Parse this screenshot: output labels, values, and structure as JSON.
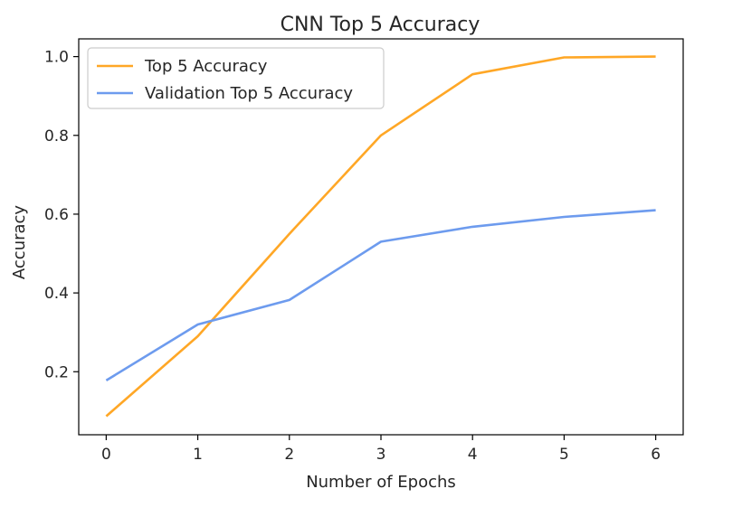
{
  "chart_data": {
    "type": "line",
    "title": "CNN Top 5 Accuracy",
    "xlabel": "Number of Epochs",
    "ylabel": "Accuracy",
    "x": [
      0,
      1,
      2,
      3,
      4,
      5,
      6
    ],
    "xticks": [
      "0",
      "1",
      "2",
      "3",
      "4",
      "5",
      "6"
    ],
    "yticks": [
      "0.2",
      "0.4",
      "0.6",
      "0.8",
      "1.0"
    ],
    "xlim": [
      -0.3,
      6.3
    ],
    "ylim": [
      0.04,
      1.045
    ],
    "grid": false,
    "legend_position": "top-left",
    "series": [
      {
        "name": "Top 5 Accuracy",
        "color": "#FFA726",
        "values": [
          0.087,
          0.29,
          0.55,
          0.8,
          0.955,
          0.998,
          1.0
        ]
      },
      {
        "name": "Validation Top 5 Accuracy",
        "color": "#6D9BEE",
        "values": [
          0.178,
          0.32,
          0.382,
          0.53,
          0.568,
          0.593,
          0.61
        ]
      }
    ]
  }
}
